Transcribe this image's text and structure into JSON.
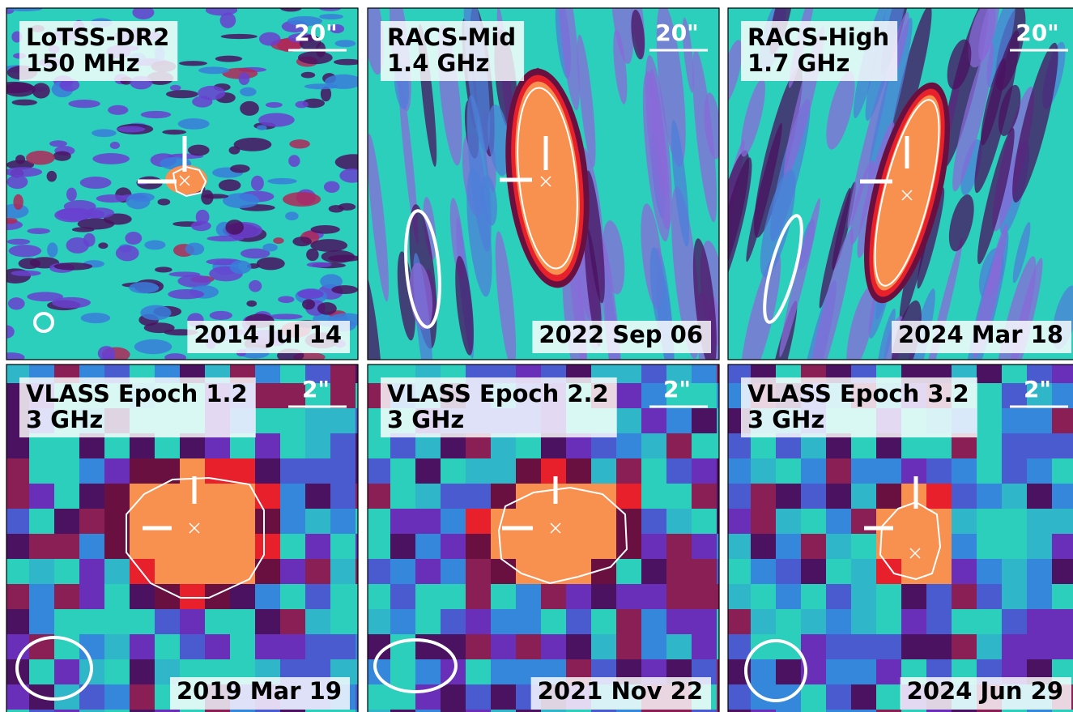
{
  "panels": [
    {
      "survey": "LoTSS-DR2",
      "frequency": "150 MHz",
      "scale": "20\"",
      "date": "2014 Jul 14"
    },
    {
      "survey": "RACS-Mid",
      "frequency": "1.4 GHz",
      "scale": "20\"",
      "date": "2022 Sep 06"
    },
    {
      "survey": "RACS-High",
      "frequency": "1.7 GHz",
      "scale": "20\"",
      "date": "2024 Mar 18"
    },
    {
      "survey": "VLASS Epoch 1.2",
      "frequency": "3 GHz",
      "scale": "2\"",
      "date": "2019 Mar 19"
    },
    {
      "survey": "VLASS Epoch 2.2",
      "frequency": "3 GHz",
      "scale": "2\"",
      "date": "2021 Nov 22"
    },
    {
      "survey": "VLASS Epoch 3.2",
      "frequency": "3 GHz",
      "scale": "2\"",
      "date": "2024 Jun 29"
    }
  ]
}
